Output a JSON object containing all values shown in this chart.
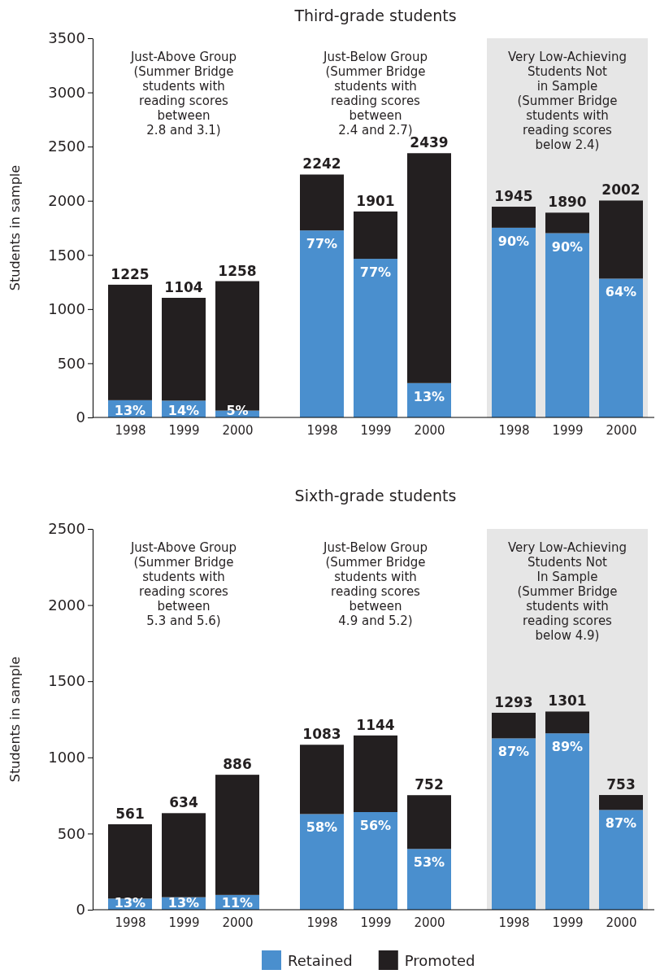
{
  "chart_data": [
    {
      "type": "bar",
      "subtitle": "Just-Above Group\n(Summer Bridge\nstudents with\nreading scores\nbetween\n2.8 and 3.1)",
      "ylabel": "Students in sample",
      "stacked": true,
      "categories": [
        "1998",
        "1999",
        "2000"
      ],
      "series": [
        {
          "color": "#4a8fce",
          "values": [
            159,
            155,
            63
          ]
        },
        {
          "color": "#231f20",
          "values": [
            1066,
            949,
            1195
          ]
        }
      ],
      "totals": [
        "1225",
        "1104",
        "1258"
      ],
      "annotations": [
        {
          "text": "13%",
          "x": "1998",
          "y": 159
        },
        {
          "text": "14%",
          "x": "1999",
          "y": 155
        },
        {
          "text": "5%",
          "x": "2000",
          "y": 63
        }
      ],
      "ylim": [
        0,
        3500
      ],
      "yticks": [
        0,
        500,
        1000,
        1500,
        2000,
        2500,
        3000,
        3500
      ]
    },
    {
      "type": "bar",
      "title": "Third-grade students",
      "subtitle": "Just-Below Group\n(Summer Bridge\nstudents with\nreading scores\nbetween\n2.4 and 2.7)",
      "stacked": true,
      "tick_labels": "x",
      "categories": [
        "1998",
        "1999",
        "2000"
      ],
      "series": [
        {
          "color": "#4a8fce",
          "values": [
            1726,
            1464,
            317
          ]
        },
        {
          "color": "#231f20",
          "values": [
            516,
            437,
            2122
          ]
        }
      ],
      "totals": [
        "2242",
        "1901",
        "2439"
      ],
      "annotations": [
        {
          "text": "77%",
          "x": "1998",
          "y": 1726
        },
        {
          "text": "77%",
          "x": "1999",
          "y": 1464
        },
        {
          "text": "13%",
          "x": "2000",
          "y": 317
        }
      ],
      "ylim": [
        0,
        3500
      ]
    },
    {
      "type": "bar",
      "subtitle": "Very Low-Achieving\nStudents Not\nin Sample\n(Summer Bridge\nstudents with\nreading scores\nbelow 2.4)",
      "stacked": true,
      "tick_labels": "x",
      "categories": [
        "1998",
        "1999",
        "2000"
      ],
      "series": [
        {
          "color": "#4a8fce",
          "values": [
            1751,
            1701,
            1281
          ]
        },
        {
          "color": "#231f20",
          "values": [
            194,
            189,
            721
          ]
        }
      ],
      "totals": [
        "1945",
        "1890",
        "2002"
      ],
      "annotations": [
        {
          "text": "90%",
          "x": "1998",
          "y": 1751
        },
        {
          "text": "90%",
          "x": "1999",
          "y": 1701
        },
        {
          "text": "64%",
          "x": "2000",
          "y": 1281
        }
      ],
      "bands": [
        {
          "axis": "x",
          "from": "1998",
          "to": "2000",
          "color": "#e6e6e6"
        }
      ],
      "ylim": [
        0,
        3500
      ]
    },
    {
      "type": "bar",
      "subtitle": "Just-Above Group\n(Summer Bridge\nstudents with\nreading scores\nbetween\n5.3 and 5.6)",
      "ylabel": "Students in sample",
      "stacked": true,
      "categories": [
        "1998",
        "1999",
        "2000"
      ],
      "series": [
        {
          "color": "#4a8fce",
          "values": [
            73,
            82,
            97
          ]
        },
        {
          "color": "#231f20",
          "values": [
            488,
            552,
            789
          ]
        }
      ],
      "totals": [
        "561",
        "634",
        "886"
      ],
      "annotations": [
        {
          "text": "13%",
          "x": "1998",
          "y": 73
        },
        {
          "text": "13%",
          "x": "1999",
          "y": 82
        },
        {
          "text": "11%",
          "x": "2000",
          "y": 97
        }
      ],
      "ylim": [
        0,
        2500
      ],
      "yticks": [
        0,
        500,
        1000,
        1500,
        2000,
        2500
      ]
    },
    {
      "type": "bar",
      "title": "Sixth-grade students",
      "subtitle": "Just-Below Group\n(Summer Bridge\nstudents with\nreading scores\nbetween\n4.9 and 5.2)",
      "stacked": true,
      "tick_labels": "x",
      "categories": [
        "1998",
        "1999",
        "2000"
      ],
      "series": [
        {
          "color": "#4a8fce",
          "values": [
            628,
            641,
            399
          ]
        },
        {
          "color": "#231f20",
          "values": [
            455,
            503,
            353
          ]
        }
      ],
      "totals": [
        "1083",
        "1144",
        "752"
      ],
      "annotations": [
        {
          "text": "58%",
          "x": "1998",
          "y": 628
        },
        {
          "text": "56%",
          "x": "1999",
          "y": 641
        },
        {
          "text": "53%",
          "x": "2000",
          "y": 399
        }
      ],
      "ylim": [
        0,
        2500
      ]
    },
    {
      "type": "bar",
      "subtitle": "Very Low-Achieving\nStudents Not\nIn Sample\n(Summer Bridge\nstudents with\nreading scores\nbelow 4.9)",
      "stacked": true,
      "tick_labels": "x",
      "legend": "bottom",
      "categories": [
        "1998",
        "1999",
        "2000"
      ],
      "series": [
        {
          "name": "Retained",
          "color": "#4a8fce",
          "values": [
            1125,
            1158,
            655
          ]
        },
        {
          "name": "Promoted",
          "color": "#231f20",
          "values": [
            168,
            143,
            98
          ]
        }
      ],
      "totals": [
        "1293",
        "1301",
        "753"
      ],
      "annotations": [
        {
          "text": "87%",
          "x": "1998",
          "y": 1125
        },
        {
          "text": "89%",
          "x": "1999",
          "y": 1158
        },
        {
          "text": "87%",
          "x": "2000",
          "y": 655
        }
      ],
      "bands": [
        {
          "axis": "x",
          "from": "1998",
          "to": "2000",
          "color": "#e6e6e6"
        }
      ],
      "ylim": [
        0,
        2500
      ]
    }
  ]
}
